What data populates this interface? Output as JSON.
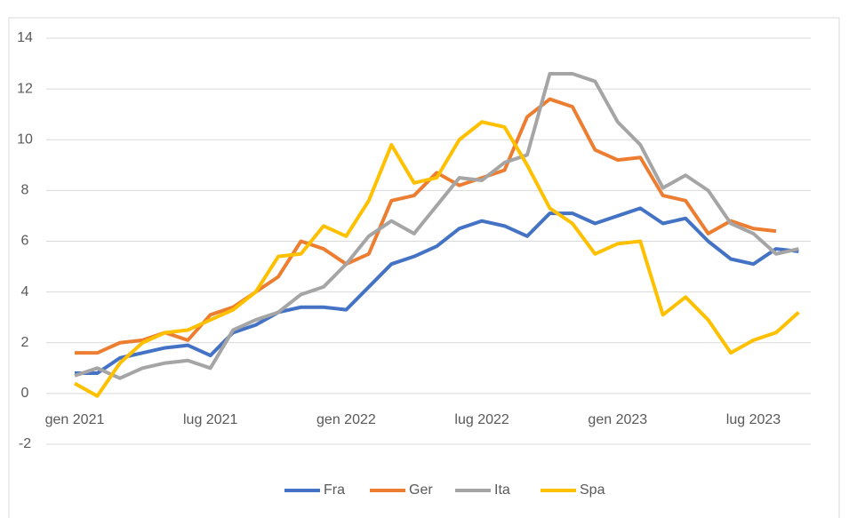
{
  "chart_data": {
    "type": "line",
    "categories": [
      "gen 2021",
      null,
      null,
      null,
      null,
      null,
      "lug 2021",
      null,
      null,
      null,
      null,
      null,
      "gen 2022",
      null,
      null,
      null,
      null,
      null,
      "lug 2022",
      null,
      null,
      null,
      null,
      null,
      "gen 2023",
      null,
      null,
      null,
      null,
      null,
      "lug 2023",
      null,
      null
    ],
    "series": [
      {
        "name": "Fra",
        "color": "#4472c4",
        "values": [
          0.8,
          0.8,
          1.4,
          1.6,
          1.8,
          1.9,
          1.5,
          2.4,
          2.7,
          3.2,
          3.4,
          3.4,
          3.3,
          4.2,
          5.1,
          5.4,
          5.8,
          6.5,
          6.8,
          6.6,
          6.2,
          7.1,
          7.1,
          6.7,
          7.0,
          7.3,
          6.7,
          6.9,
          6.0,
          5.3,
          5.1,
          5.7,
          5.6
        ]
      },
      {
        "name": "Ger",
        "color": "#ed7d31",
        "values": [
          1.6,
          1.6,
          2.0,
          2.1,
          2.4,
          2.1,
          3.1,
          3.4,
          4.0,
          4.6,
          6.0,
          5.7,
          5.1,
          5.5,
          7.6,
          7.8,
          8.7,
          8.2,
          8.5,
          8.8,
          10.9,
          11.6,
          11.3,
          9.6,
          9.2,
          9.3,
          7.8,
          7.6,
          6.3,
          6.8,
          6.5,
          6.4,
          null
        ]
      },
      {
        "name": "Ita",
        "color": "#a5a5a5",
        "values": [
          0.7,
          1.0,
          0.6,
          1.0,
          1.2,
          1.3,
          1.0,
          2.5,
          2.9,
          3.2,
          3.9,
          4.2,
          5.1,
          6.2,
          6.8,
          6.3,
          7.4,
          8.5,
          8.4,
          9.1,
          9.4,
          12.6,
          12.6,
          12.3,
          10.7,
          9.8,
          8.1,
          8.6,
          8.0,
          6.7,
          6.3,
          5.5,
          5.7
        ]
      },
      {
        "name": "Spa",
        "color": "#ffc000",
        "values": [
          0.4,
          -0.1,
          1.2,
          2.0,
          2.4,
          2.5,
          2.9,
          3.3,
          4.0,
          5.4,
          5.5,
          6.6,
          6.2,
          7.6,
          9.8,
          8.3,
          8.5,
          10.0,
          10.7,
          10.5,
          9.0,
          7.3,
          6.7,
          5.5,
          5.9,
          6.0,
          3.1,
          3.8,
          2.9,
          1.6,
          2.1,
          2.4,
          3.2
        ]
      }
    ],
    "ylim": [
      -2,
      14
    ],
    "yticks": [
      -2,
      0,
      2,
      4,
      6,
      8,
      10,
      12,
      14
    ],
    "grid": true,
    "legend": "bottom"
  }
}
